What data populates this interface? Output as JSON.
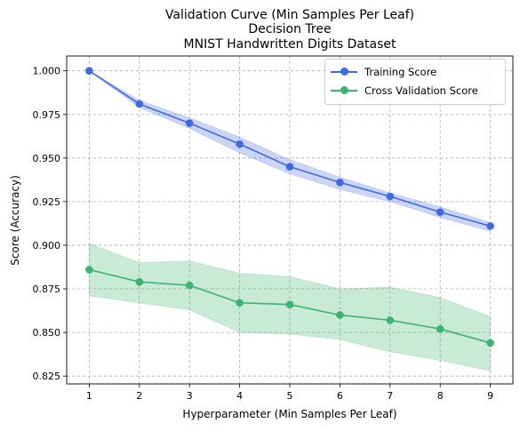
{
  "chart_data": {
    "type": "line",
    "title_lines": [
      "Validation Curve (Min Samples Per Leaf)",
      "Decision Tree",
      "MNIST Handwritten Digits Dataset"
    ],
    "xlabel": "Hyperparameter (Min Samples Per Leaf)",
    "ylabel": "Score (Accuracy)",
    "x": [
      1,
      2,
      3,
      4,
      5,
      6,
      7,
      8,
      9
    ],
    "xlim": [
      0.55,
      9.45
    ],
    "ylim": [
      0.8205,
      1.0085
    ],
    "xticks": [
      1,
      2,
      3,
      4,
      5,
      6,
      7,
      8,
      9
    ],
    "yticks": [
      0.825,
      0.85,
      0.875,
      0.9,
      0.925,
      0.95,
      0.975,
      1.0
    ],
    "ytick_labels": [
      "0.825",
      "0.850",
      "0.875",
      "0.900",
      "0.925",
      "0.950",
      "0.975",
      "1.000"
    ],
    "grid": true,
    "legend_position": "top-right",
    "series": [
      {
        "name": "Training Score",
        "color": "#4169e1",
        "band_color": "#4169e1",
        "values": [
          1.0,
          0.981,
          0.97,
          0.958,
          0.945,
          0.936,
          0.928,
          0.919,
          0.911
        ],
        "lower": [
          1.0,
          0.979,
          0.967,
          0.953,
          0.941,
          0.932,
          0.925,
          0.916,
          0.908
        ],
        "upper": [
          1.0,
          0.983,
          0.973,
          0.962,
          0.949,
          0.939,
          0.93,
          0.922,
          0.913
        ]
      },
      {
        "name": "Cross Validation Score",
        "color": "#3cb371",
        "band_color": "#3cb371",
        "values": [
          0.886,
          0.879,
          0.877,
          0.867,
          0.866,
          0.86,
          0.857,
          0.852,
          0.844
        ],
        "lower": [
          0.871,
          0.867,
          0.863,
          0.85,
          0.849,
          0.846,
          0.839,
          0.834,
          0.828
        ],
        "upper": [
          0.901,
          0.89,
          0.891,
          0.884,
          0.882,
          0.875,
          0.876,
          0.87,
          0.859
        ]
      }
    ]
  }
}
